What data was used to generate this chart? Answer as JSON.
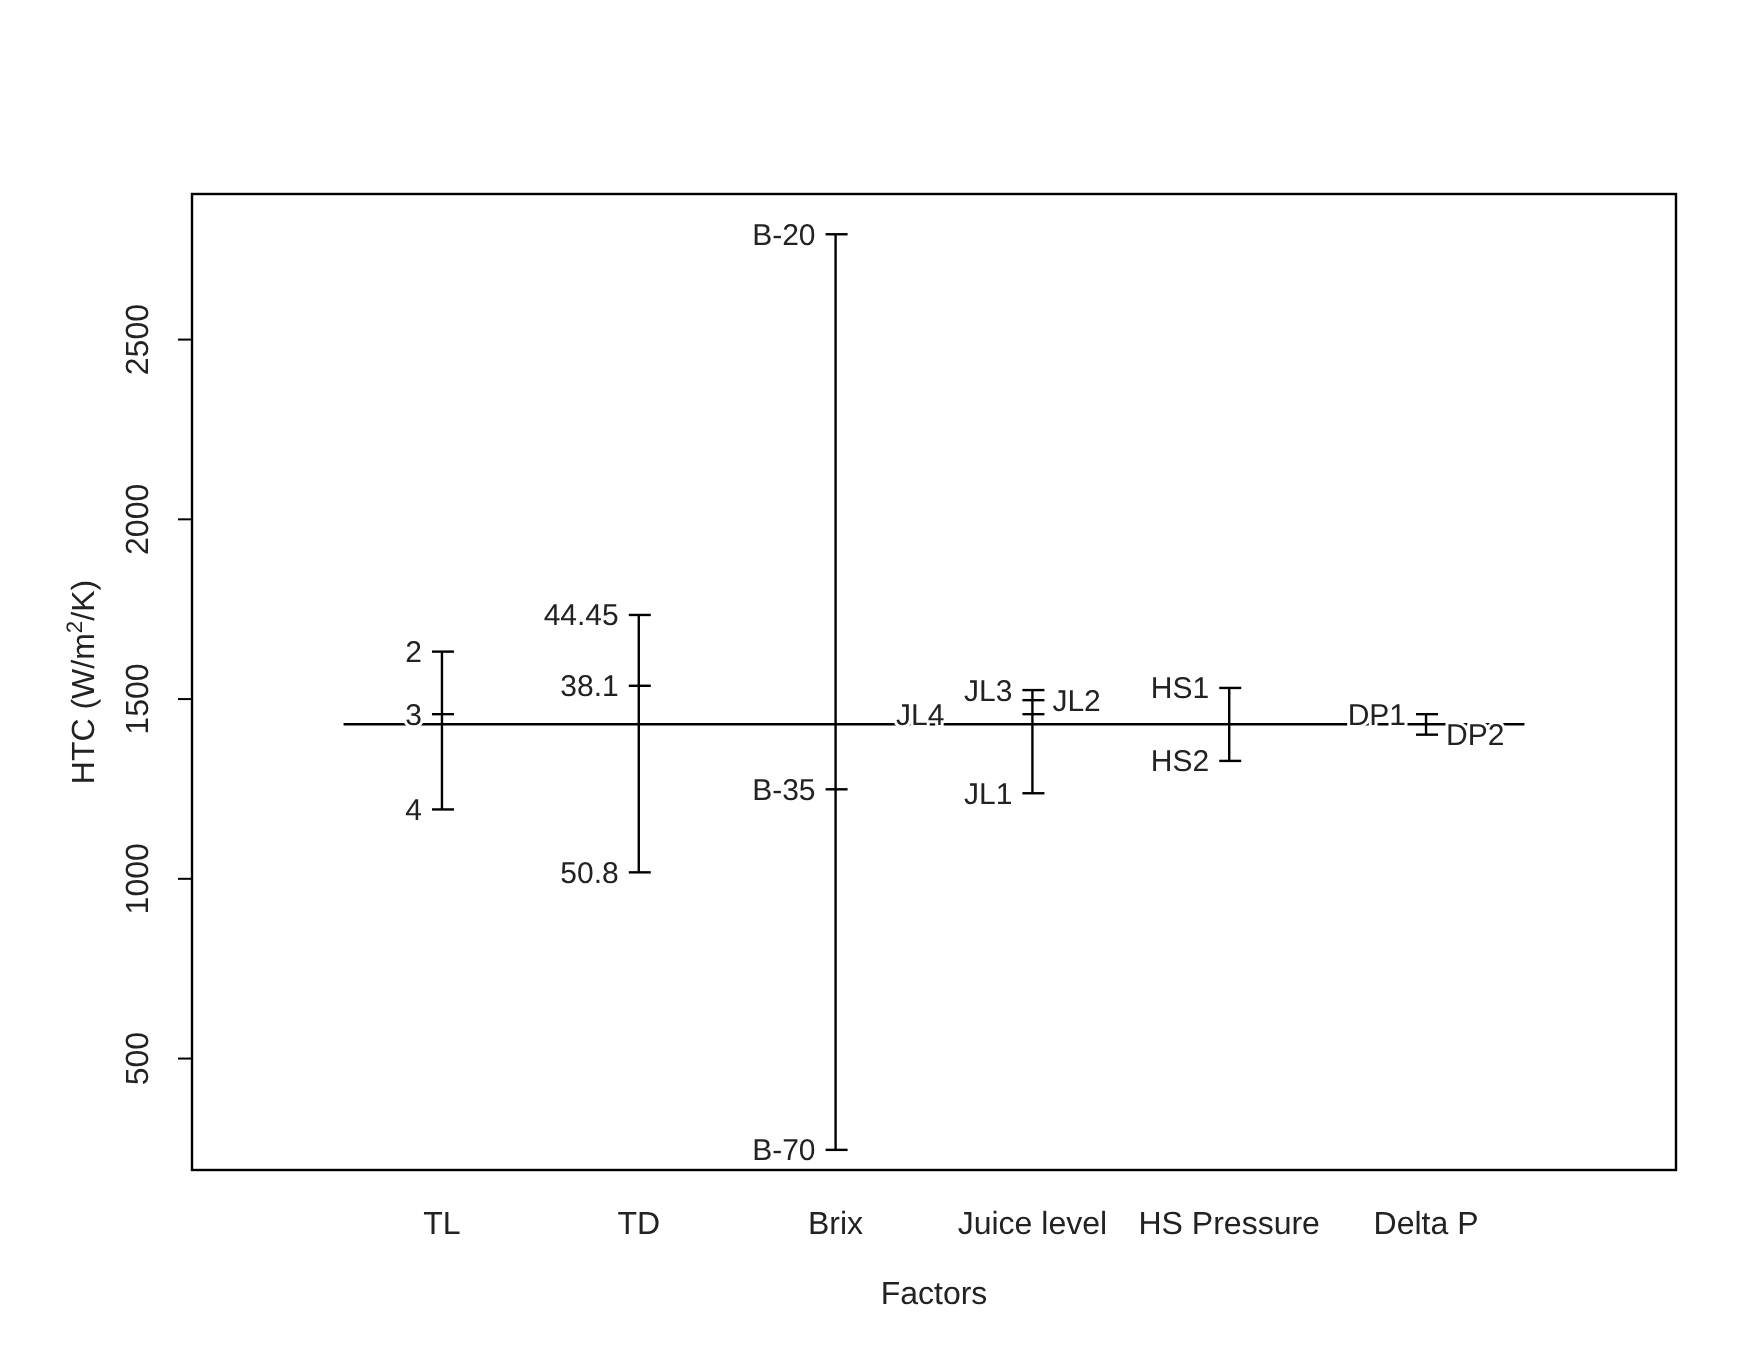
{
  "chart_data": {
    "type": "line",
    "xlabel": "Factors",
    "ylabel": "HTC (W/m$^{2}$/K)",
    "categories": [
      "TL",
      "TD",
      "Brix",
      "Juice level",
      "HS Pressure",
      "Delta P"
    ],
    "series": [
      {
        "color": "#000000",
        "x": [
          "TL",
          "TL",
          "TL"
        ],
        "values": [
          1632,
          1458,
          1193
        ]
      },
      {
        "color": "#000000",
        "x": [
          "TD",
          "TD",
          "TD"
        ],
        "values": [
          1734,
          1537,
          1018
        ]
      },
      {
        "color": "#000000",
        "x": [
          "Brix",
          "Brix",
          "Brix"
        ],
        "values": [
          2793,
          1249,
          246
        ]
      },
      {
        "color": "#000000",
        "x": [
          "Juice level",
          "Juice level",
          "Juice level",
          "Juice level"
        ],
        "values": [
          1525,
          1497,
          1458,
          1238
        ]
      },
      {
        "color": "#000000",
        "x": [
          "HS Pressure",
          "HS Pressure"
        ],
        "values": [
          1531,
          1328
        ]
      },
      {
        "color": "#000000",
        "x": [
          "Delta P",
          "Delta P"
        ],
        "values": [
          1458,
          1401
        ]
      }
    ],
    "ylim": [
      190,
      2905
    ],
    "yticks": [
      500,
      1000,
      1500,
      2000,
      2500
    ],
    "ref_lines": [
      {
        "axis": "y",
        "value": 1430
      }
    ],
    "annotations": [
      {
        "text": "2",
        "x": "TL",
        "y": 1632
      },
      {
        "text": "3",
        "x": "TL",
        "y": 1458
      },
      {
        "text": "4",
        "x": "TL",
        "y": 1193
      },
      {
        "text": "44.45",
        "x": "TD",
        "y": 1734
      },
      {
        "text": "38.1",
        "x": "TD",
        "y": 1537
      },
      {
        "text": "50.8",
        "x": "TD",
        "y": 1018
      },
      {
        "text": "B-20",
        "x": "Brix",
        "y": 2793
      },
      {
        "text": "B-35",
        "x": "Brix",
        "y": 1249
      },
      {
        "text": "B-70",
        "x": "Brix",
        "y": 246
      },
      {
        "text": "JL3",
        "x": "Juice level",
        "y": 1525
      },
      {
        "text": "JL2",
        "x": "Juice level",
        "y": 1497
      },
      {
        "text": "JL4",
        "x": "Juice level",
        "y": 1458
      },
      {
        "text": "JL1",
        "x": "Juice level",
        "y": 1238
      },
      {
        "text": "HS1",
        "x": "HS Pressure",
        "y": 1531
      },
      {
        "text": "HS2",
        "x": "HS Pressure",
        "y": 1328
      },
      {
        "text": "DP1",
        "x": "Delta P",
        "y": 1458
      },
      {
        "text": "DP2",
        "x": "Delta P",
        "y": 1401
      }
    ]
  }
}
